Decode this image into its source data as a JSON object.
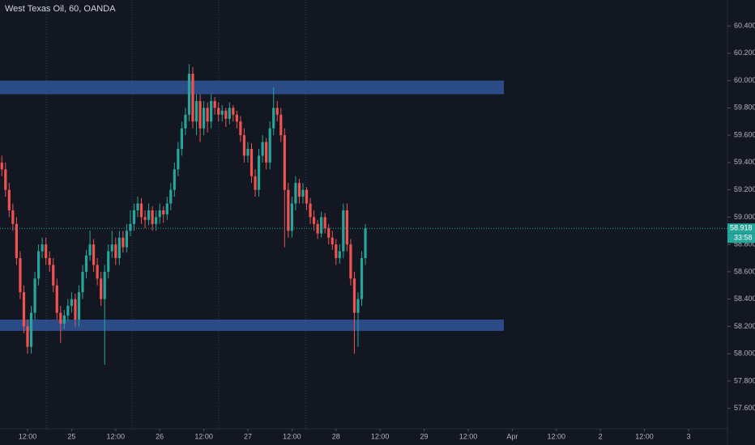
{
  "chart_data": {
    "type": "candlestick",
    "title": "West Texas Oil, 60, OANDA",
    "up_color": "#26a69a",
    "down_color": "#ef5350",
    "zone_color": "#2f5596",
    "xlim": [
      -7.5,
      190.6
    ],
    "ylim": [
      57.45,
      60.59
    ],
    "xticks": [
      {
        "value": 0,
        "label": "12:00"
      },
      {
        "value": 12,
        "label": "25"
      },
      {
        "value": 24,
        "label": "12:00"
      },
      {
        "value": 36,
        "label": "26"
      },
      {
        "value": 48,
        "label": "12:00"
      },
      {
        "value": 60,
        "label": "27"
      },
      {
        "value": 72,
        "label": "12:00"
      },
      {
        "value": 84,
        "label": "28"
      },
      {
        "value": 96,
        "label": "12:00"
      },
      {
        "value": 108,
        "label": "29"
      },
      {
        "value": 120,
        "label": "12:00"
      },
      {
        "value": 132,
        "label": "Apr"
      },
      {
        "value": 144,
        "label": "12:00"
      },
      {
        "value": 156,
        "label": "2"
      },
      {
        "value": 168,
        "label": "12:00"
      },
      {
        "value": 180,
        "label": "3"
      }
    ],
    "yticks": [
      {
        "value": 57.6,
        "label": "57.600"
      },
      {
        "value": 57.8,
        "label": "57.800"
      },
      {
        "value": 58.0,
        "label": "58.000"
      },
      {
        "value": 58.2,
        "label": "58.200"
      },
      {
        "value": 58.4,
        "label": "58.400"
      },
      {
        "value": 58.6,
        "label": "58.600"
      },
      {
        "value": 58.8,
        "label": "58.800"
      },
      {
        "value": 59.0,
        "label": "59.000"
      },
      {
        "value": 59.2,
        "label": "59.200"
      },
      {
        "value": 59.4,
        "label": "59.400"
      },
      {
        "value": 59.6,
        "label": "59.600"
      },
      {
        "value": 59.8,
        "label": "59.800"
      },
      {
        "value": 60.0,
        "label": "60.000"
      },
      {
        "value": 60.2,
        "label": "60.200"
      },
      {
        "value": 60.4,
        "label": "60.400"
      }
    ],
    "zones": [
      {
        "from": 59.9,
        "to": 60.0
      },
      {
        "from": 58.17,
        "to": 58.25
      }
    ],
    "last_price": 58.918,
    "countdown": "33:58",
    "x": [
      -7,
      -6,
      -5,
      -4,
      -3,
      -2,
      -1,
      0,
      1,
      2,
      3,
      4,
      5,
      6,
      7,
      8,
      9,
      10,
      11,
      12,
      13,
      14,
      15,
      16,
      17,
      18,
      19,
      20,
      21,
      22,
      23,
      24,
      25,
      26,
      27,
      28,
      29,
      30,
      31,
      32,
      33,
      34,
      35,
      36,
      37,
      38,
      39,
      40,
      41,
      42,
      43,
      44,
      45,
      46,
      47,
      48,
      49,
      50,
      51,
      52,
      53,
      54,
      55,
      56,
      57,
      58,
      59,
      60,
      61,
      62,
      63,
      64,
      65,
      66,
      67,
      68,
      69,
      70,
      71,
      72,
      73,
      74,
      75,
      76,
      77,
      78,
      79,
      80,
      81,
      82,
      83,
      84,
      85,
      86,
      87,
      88,
      89,
      90,
      91,
      92
    ],
    "ohlc": [
      [
        59.4,
        59.45,
        59.3,
        59.35
      ],
      [
        59.35,
        59.4,
        59.15,
        59.2
      ],
      [
        59.2,
        59.25,
        59.0,
        59.05
      ],
      [
        59.05,
        59.1,
        58.9,
        58.95
      ],
      [
        58.95,
        59.0,
        58.65,
        58.7
      ],
      [
        58.7,
        58.75,
        58.4,
        58.45
      ],
      [
        58.45,
        58.5,
        58.15,
        58.2
      ],
      [
        58.2,
        58.25,
        58.0,
        58.05
      ],
      [
        58.05,
        58.35,
        58.0,
        58.3
      ],
      [
        58.3,
        58.6,
        58.25,
        58.55
      ],
      [
        58.55,
        58.8,
        58.5,
        58.75
      ],
      [
        58.75,
        58.85,
        58.7,
        58.8
      ],
      [
        58.8,
        58.85,
        58.65,
        58.7
      ],
      [
        58.7,
        58.75,
        58.6,
        58.65
      ],
      [
        58.65,
        58.7,
        58.45,
        58.5
      ],
      [
        58.5,
        58.55,
        58.25,
        58.3
      ],
      [
        58.3,
        58.35,
        58.08,
        58.22
      ],
      [
        58.22,
        58.32,
        58.18,
        58.28
      ],
      [
        58.28,
        58.4,
        58.24,
        58.35
      ],
      [
        58.35,
        58.45,
        58.3,
        58.4
      ],
      [
        58.4,
        58.44,
        58.2,
        58.25
      ],
      [
        58.25,
        58.5,
        58.2,
        58.45
      ],
      [
        58.45,
        58.65,
        58.4,
        58.6
      ],
      [
        58.6,
        58.76,
        58.55,
        58.72
      ],
      [
        58.72,
        58.9,
        58.68,
        58.8
      ],
      [
        58.8,
        58.84,
        58.6,
        58.65
      ],
      [
        58.65,
        58.7,
        58.5,
        58.55
      ],
      [
        58.55,
        58.6,
        58.35,
        58.4
      ],
      [
        58.4,
        58.65,
        57.92,
        58.6
      ],
      [
        58.6,
        58.8,
        58.55,
        58.75
      ],
      [
        58.75,
        58.9,
        58.7,
        58.8
      ],
      [
        58.8,
        58.85,
        58.65,
        58.7
      ],
      [
        58.7,
        58.9,
        58.65,
        58.85
      ],
      [
        58.85,
        58.9,
        58.74,
        58.78
      ],
      [
        58.78,
        58.95,
        58.74,
        58.9
      ],
      [
        58.9,
        59.05,
        58.86,
        58.95
      ],
      [
        58.95,
        59.1,
        58.9,
        59.05
      ],
      [
        59.05,
        59.15,
        59.0,
        59.1
      ],
      [
        59.1,
        59.14,
        58.95,
        59.0
      ],
      [
        59.0,
        59.05,
        58.92,
        58.98
      ],
      [
        58.98,
        59.1,
        58.94,
        59.05
      ],
      [
        59.05,
        59.08,
        58.9,
        58.95
      ],
      [
        58.95,
        59.05,
        58.9,
        59.0
      ],
      [
        59.0,
        59.1,
        58.95,
        59.05
      ],
      [
        59.05,
        59.08,
        58.96,
        59.02
      ],
      [
        59.02,
        59.15,
        58.98,
        59.1
      ],
      [
        59.1,
        59.25,
        59.05,
        59.2
      ],
      [
        59.2,
        59.4,
        59.15,
        59.35
      ],
      [
        59.35,
        59.55,
        59.3,
        59.5
      ],
      [
        59.5,
        59.7,
        59.45,
        59.65
      ],
      [
        59.65,
        59.8,
        59.6,
        59.75
      ],
      [
        59.75,
        60.12,
        59.7,
        60.05
      ],
      [
        60.05,
        60.1,
        59.65,
        59.7
      ],
      [
        59.7,
        59.9,
        59.6,
        59.85
      ],
      [
        59.85,
        59.9,
        59.55,
        59.65
      ],
      [
        59.65,
        59.85,
        59.6,
        59.8
      ],
      [
        59.8,
        59.84,
        59.62,
        59.7
      ],
      [
        59.7,
        59.9,
        59.65,
        59.85
      ],
      [
        59.85,
        59.88,
        59.75,
        59.8
      ],
      [
        59.8,
        59.84,
        59.7,
        59.75
      ],
      [
        59.75,
        59.82,
        59.7,
        59.78
      ],
      [
        59.78,
        59.8,
        59.66,
        59.72
      ],
      [
        59.72,
        59.84,
        59.68,
        59.8
      ],
      [
        59.8,
        59.82,
        59.7,
        59.75
      ],
      [
        59.75,
        59.78,
        59.65,
        59.7
      ],
      [
        59.7,
        59.74,
        59.55,
        59.6
      ],
      [
        59.6,
        59.65,
        59.4,
        59.45
      ],
      [
        59.45,
        59.55,
        59.4,
        59.5
      ],
      [
        59.5,
        59.54,
        59.25,
        59.3
      ],
      [
        59.3,
        59.35,
        59.15,
        59.2
      ],
      [
        59.2,
        59.5,
        59.15,
        59.45
      ],
      [
        59.45,
        59.6,
        59.4,
        59.55
      ],
      [
        59.55,
        59.58,
        59.35,
        59.4
      ],
      [
        59.4,
        59.7,
        59.35,
        59.65
      ],
      [
        59.65,
        59.95,
        59.6,
        59.8
      ],
      [
        59.8,
        59.85,
        59.7,
        59.75
      ],
      [
        59.75,
        59.8,
        59.55,
        59.6
      ],
      [
        59.6,
        59.65,
        58.78,
        59.2
      ],
      [
        59.2,
        59.25,
        58.85,
        58.9
      ],
      [
        58.9,
        59.15,
        58.85,
        59.1
      ],
      [
        59.1,
        59.3,
        59.05,
        59.25
      ],
      [
        59.25,
        59.28,
        59.1,
        59.15
      ],
      [
        59.15,
        59.25,
        59.1,
        59.2
      ],
      [
        59.2,
        59.22,
        59.05,
        59.1
      ],
      [
        59.1,
        59.14,
        58.95,
        59.0
      ],
      [
        59.0,
        59.05,
        58.9,
        58.95
      ],
      [
        58.95,
        58.98,
        58.84,
        58.88
      ],
      [
        58.88,
        59.04,
        58.85,
        59.0
      ],
      [
        59.0,
        59.03,
        58.88,
        58.92
      ],
      [
        58.92,
        58.95,
        58.8,
        58.85
      ],
      [
        58.85,
        58.9,
        58.76,
        58.8
      ],
      [
        58.8,
        58.84,
        58.65,
        58.7
      ],
      [
        58.7,
        58.8,
        58.66,
        58.75
      ],
      [
        58.75,
        59.1,
        58.7,
        59.05
      ],
      [
        59.05,
        59.1,
        58.75,
        58.8
      ],
      [
        58.8,
        58.84,
        58.5,
        58.55
      ],
      [
        58.55,
        58.6,
        58.0,
        58.3
      ],
      [
        58.3,
        58.45,
        58.05,
        58.4
      ],
      [
        58.4,
        58.75,
        58.35,
        58.7
      ],
      [
        58.7,
        58.95,
        58.65,
        58.918
      ]
    ]
  }
}
